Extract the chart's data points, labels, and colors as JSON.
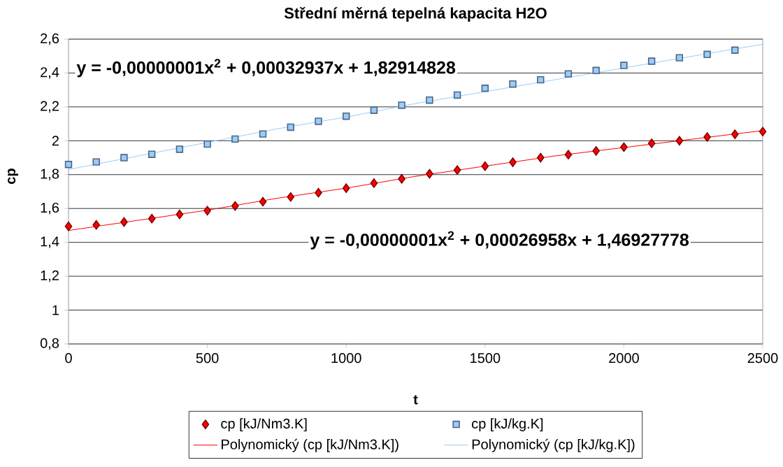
{
  "chart_data": {
    "type": "scatter",
    "title": "Střední měrná tepelná kapacita H2O",
    "xlabel": "t",
    "ylabel": "cp",
    "xlim": [
      0,
      2500
    ],
    "xticks": [
      0,
      500,
      1000,
      1500,
      2000,
      2500
    ],
    "ylim": [
      0.8,
      2.6
    ],
    "yticks": [
      {
        "value": 0.8,
        "label": "0,8"
      },
      1,
      {
        "value": 1.2,
        "label": "1,2"
      },
      {
        "value": 1.4,
        "label": "1,4"
      },
      {
        "value": 1.6,
        "label": "1,6"
      },
      {
        "value": 1.8,
        "label": "1,8"
      },
      2,
      {
        "value": 2.2,
        "label": "2,2"
      },
      {
        "value": 2.4,
        "label": "2,4"
      },
      {
        "value": 2.6,
        "label": "2,6"
      }
    ],
    "grid": "y",
    "legend": "bottom",
    "series": [
      {
        "name": "cp [kJ/Nm3.K]",
        "marker": "diamond",
        "color": "#ff0000",
        "x": [
          0,
          100,
          200,
          300,
          400,
          500,
          600,
          700,
          800,
          900,
          1000,
          1100,
          1200,
          1300,
          1400,
          1500,
          1600,
          1700,
          1800,
          1900,
          2000,
          2100,
          2200,
          2300,
          2400,
          2500
        ],
        "values": [
          1.495,
          1.503,
          1.52,
          1.54,
          1.565,
          1.587,
          1.615,
          1.64,
          1.668,
          1.693,
          1.72,
          1.75,
          1.775,
          1.805,
          1.827,
          1.85,
          1.873,
          1.9,
          1.918,
          1.94,
          1.962,
          1.985,
          2.0,
          2.022,
          2.038,
          2.054
        ]
      },
      {
        "name": "cp [kJ/kg.K]",
        "marker": "square",
        "color": "#99ccff",
        "x": [
          0,
          100,
          200,
          300,
          400,
          500,
          600,
          700,
          800,
          900,
          1000,
          1100,
          1200,
          1300,
          1400,
          1500,
          1600,
          1700,
          1800,
          1900,
          2000,
          2100,
          2200,
          2300,
          2400
        ],
        "values": [
          1.86,
          1.875,
          1.9,
          1.92,
          1.95,
          1.98,
          2.01,
          2.04,
          2.08,
          2.115,
          2.145,
          2.18,
          2.21,
          2.24,
          2.27,
          2.31,
          2.335,
          2.36,
          2.395,
          2.415,
          2.445,
          2.47,
          2.49,
          2.51,
          2.535
        ]
      },
      {
        "name": "Polynomický (cp [kJ/Nm3.K])",
        "type": "line",
        "marker": "none",
        "line_style": "solid",
        "color": "#ff0000",
        "x": [
          0,
          250,
          500,
          750,
          1000,
          1250,
          1500,
          1750,
          2000,
          2250,
          2500
        ],
        "values": [
          1.47,
          1.53,
          1.59,
          1.66,
          1.72,
          1.79,
          1.85,
          1.91,
          1.96,
          2.01,
          2.06
        ]
      },
      {
        "name": "Polynomický (cp [kJ/kg.K])",
        "type": "line",
        "marker": "none",
        "line_style": "solid",
        "color": "#99ccff",
        "x": [
          0,
          250,
          500,
          750,
          1000,
          1250,
          1500,
          1750,
          2000,
          2250,
          2500
        ],
        "values": [
          1.83,
          1.91,
          1.99,
          2.07,
          2.14,
          2.22,
          2.29,
          2.36,
          2.43,
          2.5,
          2.57
        ]
      }
    ],
    "annotations": [
      "y = -0,00000001x$^{2}$ + 0,00032937x + 1,82914828",
      "y = -0,00000001x$^{2}$ + 0,00026958x + 1,46927778"
    ]
  }
}
